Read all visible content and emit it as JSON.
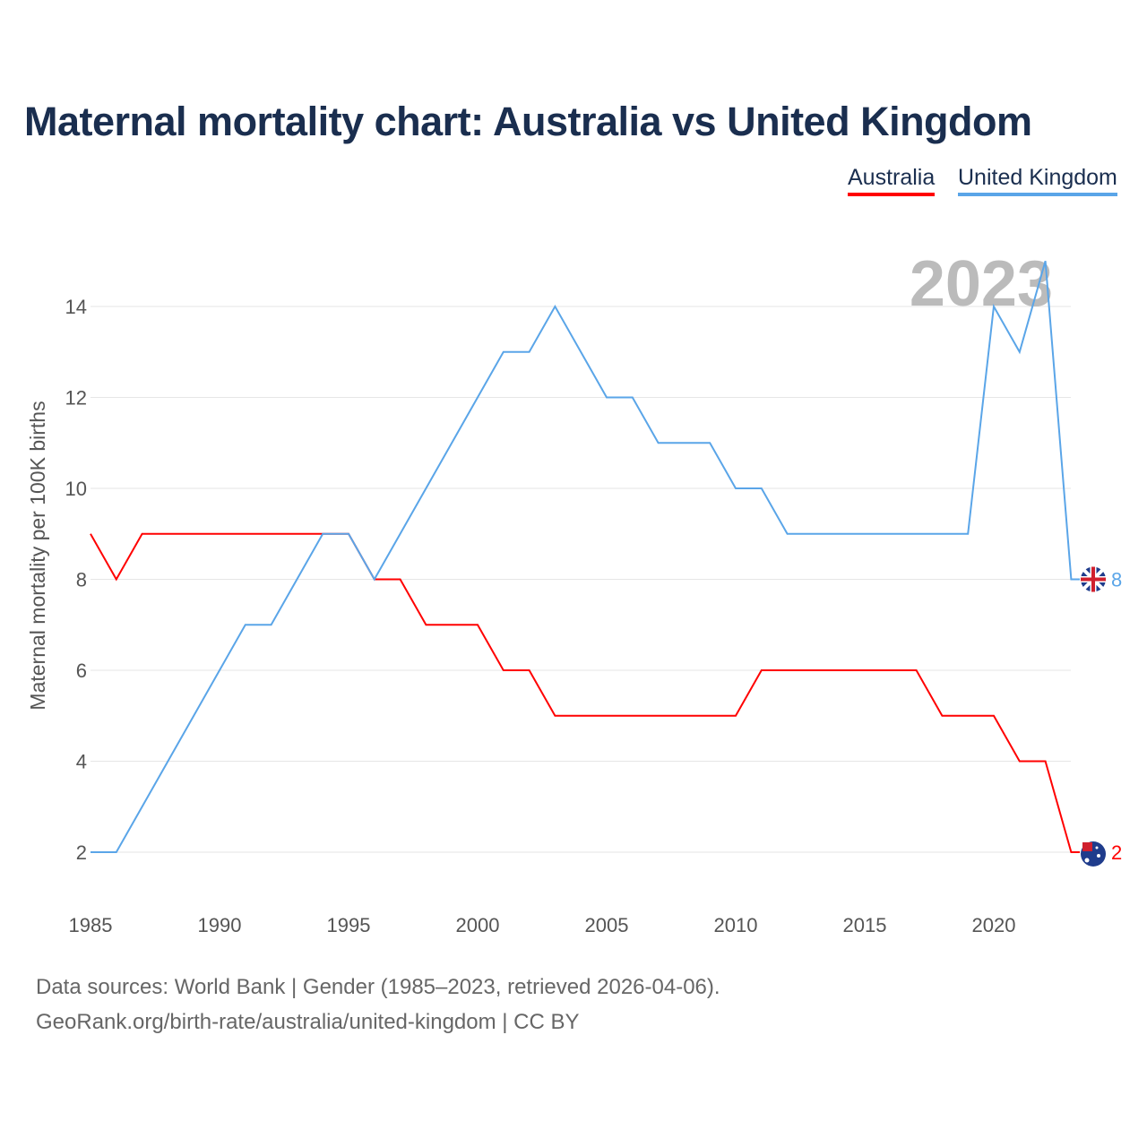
{
  "chart_data": {
    "type": "line",
    "title": "Maternal mortality chart: Australia vs United Kingdom",
    "ylabel": "Maternal mortality per 100K births",
    "xlabel": "",
    "year_label": "2023",
    "x": [
      1985,
      1986,
      1987,
      1988,
      1989,
      1990,
      1991,
      1992,
      1993,
      1994,
      1995,
      1996,
      1997,
      1998,
      1999,
      2000,
      2001,
      2002,
      2003,
      2004,
      2005,
      2006,
      2007,
      2008,
      2009,
      2010,
      2011,
      2012,
      2013,
      2014,
      2015,
      2016,
      2017,
      2018,
      2019,
      2020,
      2021,
      2022,
      2023
    ],
    "series": [
      {
        "name": "Australia",
        "color": "#ff0000",
        "values": [
          9,
          8,
          9,
          9,
          9,
          9,
          9,
          9,
          9,
          9,
          9,
          8,
          8,
          7,
          7,
          7,
          6,
          6,
          5,
          5,
          5,
          5,
          5,
          5,
          5,
          5,
          6,
          6,
          6,
          6,
          6,
          6,
          6,
          5,
          5,
          5,
          4,
          4,
          2
        ],
        "end_label": "2"
      },
      {
        "name": "United Kingdom",
        "color": "#5aa5e8",
        "values": [
          2,
          2,
          3,
          4,
          5,
          6,
          7,
          7,
          8,
          9,
          9,
          8,
          9,
          10,
          11,
          12,
          13,
          13,
          14,
          13,
          12,
          12,
          11,
          11,
          11,
          10,
          10,
          9,
          9,
          9,
          9,
          9,
          9,
          9,
          9,
          14,
          13,
          15,
          8
        ],
        "end_label": "8"
      }
    ],
    "xticks": [
      "1985",
      "1990",
      "1995",
      "2000",
      "2005",
      "2010",
      "2015",
      "2020"
    ],
    "yticks": [
      "2",
      "4",
      "6",
      "8",
      "10",
      "12",
      "14"
    ],
    "xlim": [
      1985,
      2023
    ],
    "ylim": [
      2,
      14
    ],
    "grid": true,
    "legend": "top-right"
  },
  "footer": {
    "line1": "Data sources: World Bank | Gender (1985–2023, retrieved 2026-04-06).",
    "line2": "GeoRank.org/birth-rate/australia/united-kingdom | CC BY"
  }
}
